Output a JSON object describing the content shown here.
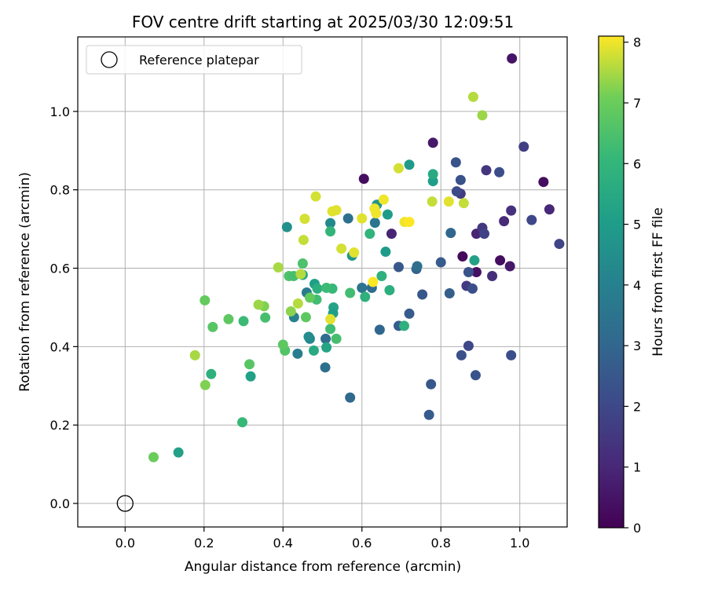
{
  "chart_data": {
    "type": "scatter",
    "title": "FOV centre drift starting at 2025/03/30 12:09:51",
    "xlabel": "Angular distance from reference (arcmin)",
    "ylabel": "Rotation from reference (arcmin)",
    "xlim": [
      -0.12,
      1.12
    ],
    "ylim": [
      -0.06,
      1.19
    ],
    "xticks": [
      "0.0",
      "0.2",
      "0.4",
      "0.6",
      "0.8",
      "1.0"
    ],
    "yticks": [
      "0.0",
      "0.2",
      "0.4",
      "0.6",
      "0.8",
      "1.0"
    ],
    "grid": true,
    "legend": {
      "position": "top-left",
      "entries": [
        "Reference platepar"
      ]
    },
    "reference_point": {
      "x": 0.0,
      "y": 0.0
    },
    "colorbar": {
      "label": "Hours from first FF file",
      "range": [
        0,
        8.1
      ],
      "ticks": [
        "0",
        "1",
        "2",
        "3",
        "4",
        "5",
        "6",
        "7",
        "8"
      ],
      "colormap": "viridis"
    },
    "points": [
      [
        0.98,
        1.135,
        0.5
      ],
      [
        0.78,
        0.92,
        0.6
      ],
      [
        0.605,
        0.828,
        0.3
      ],
      [
        1.06,
        0.82,
        0.3
      ],
      [
        0.855,
        0.63,
        0.2
      ],
      [
        0.89,
        0.59,
        0.4
      ],
      [
        0.95,
        0.62,
        0.3
      ],
      [
        0.975,
        0.605,
        0.6
      ],
      [
        0.675,
        0.688,
        0.9
      ],
      [
        0.89,
        0.688,
        0.9
      ],
      [
        0.96,
        0.72,
        1.1
      ],
      [
        0.93,
        0.58,
        1.2
      ],
      [
        1.075,
        0.75,
        1.0
      ],
      [
        0.978,
        0.747,
        1.3
      ],
      [
        0.915,
        0.85,
        1.4
      ],
      [
        0.85,
        0.79,
        1.6
      ],
      [
        0.905,
        0.703,
        1.5
      ],
      [
        0.865,
        0.555,
        1.6
      ],
      [
        1.01,
        0.91,
        1.7
      ],
      [
        0.91,
        0.688,
        1.8
      ],
      [
        1.1,
        0.662,
        1.9
      ],
      [
        1.03,
        0.723,
        2.0
      ],
      [
        0.84,
        0.796,
        2.1
      ],
      [
        0.948,
        0.845,
        2.2
      ],
      [
        0.85,
        0.825,
        2.3
      ],
      [
        0.838,
        0.87,
        2.4
      ],
      [
        0.87,
        0.59,
        2.4
      ],
      [
        0.88,
        0.548,
        2.2
      ],
      [
        0.87,
        0.402,
        2.0
      ],
      [
        0.852,
        0.378,
        2.3
      ],
      [
        0.978,
        0.378,
        2.2
      ],
      [
        0.888,
        0.327,
        2.4
      ],
      [
        0.775,
        0.304,
        2.5
      ],
      [
        0.77,
        0.226,
        2.6
      ],
      [
        0.753,
        0.533,
        2.5
      ],
      [
        0.8,
        0.615,
        2.6
      ],
      [
        0.822,
        0.536,
        2.7
      ],
      [
        0.738,
        0.598,
        2.8
      ],
      [
        0.72,
        0.484,
        2.6
      ],
      [
        0.693,
        0.603,
        2.5
      ],
      [
        0.693,
        0.453,
        2.7
      ],
      [
        0.825,
        0.69,
        3.0
      ],
      [
        0.74,
        0.605,
        3.3
      ],
      [
        0.645,
        0.443,
        3.0
      ],
      [
        0.625,
        0.55,
        3.1
      ],
      [
        0.57,
        0.27,
        3.1
      ],
      [
        0.508,
        0.42,
        3.2
      ],
      [
        0.507,
        0.347,
        3.3
      ],
      [
        0.565,
        0.727,
        3.4
      ],
      [
        0.633,
        0.716,
        3.6
      ],
      [
        0.6,
        0.55,
        3.5
      ],
      [
        0.46,
        0.538,
        3.8
      ],
      [
        0.437,
        0.382,
        3.9
      ],
      [
        0.428,
        0.475,
        4.0
      ],
      [
        0.468,
        0.42,
        4.2
      ],
      [
        0.465,
        0.425,
        4.4
      ],
      [
        0.52,
        0.715,
        4.3
      ],
      [
        0.41,
        0.705,
        4.6
      ],
      [
        0.575,
        0.632,
        4.8
      ],
      [
        0.638,
        0.762,
        4.8
      ],
      [
        0.72,
        0.864,
        4.9
      ],
      [
        0.66,
        0.642,
        5.0
      ],
      [
        0.665,
        0.737,
        5.0
      ],
      [
        0.78,
        0.822,
        5.1
      ],
      [
        0.885,
        0.62,
        5.2
      ],
      [
        0.48,
        0.56,
        5.1
      ],
      [
        0.318,
        0.324,
        5.2
      ],
      [
        0.528,
        0.5,
        5.3
      ],
      [
        0.527,
        0.485,
        5.1
      ],
      [
        0.51,
        0.398,
        5.3
      ],
      [
        0.478,
        0.39,
        5.5
      ],
      [
        0.45,
        0.583,
        5.4
      ],
      [
        0.487,
        0.548,
        5.7
      ],
      [
        0.78,
        0.84,
        5.5
      ],
      [
        0.65,
        0.58,
        5.8
      ],
      [
        0.67,
        0.544,
        5.7
      ],
      [
        0.608,
        0.527,
        5.8
      ],
      [
        0.62,
        0.688,
        5.9
      ],
      [
        0.707,
        0.453,
        5.8
      ],
      [
        0.52,
        0.694,
        6.0
      ],
      [
        0.525,
        0.548,
        6.1
      ],
      [
        0.51,
        0.55,
        6.2
      ],
      [
        0.52,
        0.445,
        6.3
      ],
      [
        0.485,
        0.52,
        6.3
      ],
      [
        0.535,
        0.42,
        6.4
      ],
      [
        0.415,
        0.58,
        6.5
      ],
      [
        0.427,
        0.58,
        6.4
      ],
      [
        0.45,
        0.612,
        6.5
      ],
      [
        0.355,
        0.474,
        6.4
      ],
      [
        0.405,
        0.39,
        6.6
      ],
      [
        0.57,
        0.537,
        6.3
      ],
      [
        0.3,
        0.465,
        6.2
      ],
      [
        0.297,
        0.207,
        6.1
      ],
      [
        0.135,
        0.13,
        5.2
      ],
      [
        0.218,
        0.33,
        5.8
      ],
      [
        0.315,
        0.355,
        6.7
      ],
      [
        0.4,
        0.405,
        6.8
      ],
      [
        0.458,
        0.475,
        6.8
      ],
      [
        0.468,
        0.525,
        6.9
      ],
      [
        0.222,
        0.45,
        6.7
      ],
      [
        0.262,
        0.47,
        6.8
      ],
      [
        0.202,
        0.518,
        6.9
      ],
      [
        0.352,
        0.503,
        7.2
      ],
      [
        0.338,
        0.507,
        7.4
      ],
      [
        0.42,
        0.49,
        7.3
      ],
      [
        0.203,
        0.302,
        7.2
      ],
      [
        0.177,
        0.378,
        7.5
      ],
      [
        0.072,
        0.118,
        7.0
      ],
      [
        0.905,
        0.99,
        7.4
      ],
      [
        0.778,
        0.77,
        7.7
      ],
      [
        0.693,
        0.855,
        7.8
      ],
      [
        0.882,
        1.037,
        7.6
      ],
      [
        0.388,
        0.602,
        7.5
      ],
      [
        0.438,
        0.51,
        7.6
      ],
      [
        0.445,
        0.585,
        7.6
      ],
      [
        0.452,
        0.672,
        7.7
      ],
      [
        0.455,
        0.726,
        7.8
      ],
      [
        0.483,
        0.783,
        7.8
      ],
      [
        0.525,
        0.745,
        7.9
      ],
      [
        0.535,
        0.748,
        7.9
      ],
      [
        0.548,
        0.65,
        7.8
      ],
      [
        0.58,
        0.64,
        7.9
      ],
      [
        0.6,
        0.727,
        7.9
      ],
      [
        0.632,
        0.752,
        8.0
      ],
      [
        0.636,
        0.74,
        8.0
      ],
      [
        0.655,
        0.775,
        8.0
      ],
      [
        0.708,
        0.718,
        8.0
      ],
      [
        0.72,
        0.718,
        8.1
      ],
      [
        0.82,
        0.77,
        7.9
      ],
      [
        0.858,
        0.766,
        7.7
      ],
      [
        0.52,
        0.47,
        7.9
      ],
      [
        0.628,
        0.565,
        8.1
      ]
    ]
  }
}
